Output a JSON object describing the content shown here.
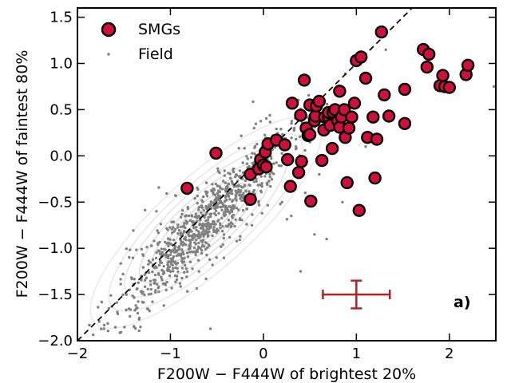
{
  "chart_data": {
    "type": "scatter",
    "xlabel": "F200W − F444W of brightest 20%",
    "ylabel": "F200W − F444W of faintest 80%",
    "xlim": [
      -2.0,
      2.5
    ],
    "ylim": [
      -2.0,
      1.6
    ],
    "x_ticks": [
      -2,
      -1,
      0,
      1,
      2
    ],
    "x_tick_labels": [
      "−2",
      "−1",
      "0",
      "1",
      "2"
    ],
    "y_ticks": [
      -2.0,
      -1.5,
      -1.0,
      -0.5,
      0.0,
      0.5,
      1.0,
      1.5
    ],
    "y_tick_labels": [
      "−2.0",
      "−1.5",
      "−1.0",
      "−0.5",
      "0.0",
      "0.5",
      "1.0",
      "1.5"
    ],
    "grid": false,
    "legend_position": "top-left",
    "panel_label": "a)",
    "one_to_one_line": true,
    "colors": {
      "smg_face": "#d0103a",
      "smg_edge": "#000000",
      "field": "#808080",
      "errorbar": "#b22222",
      "contour": "#c8c8c8"
    },
    "series": [
      {
        "name": "SMGs",
        "x": [
          -0.82,
          -0.51,
          -0.14,
          -0.14,
          -0.05,
          -0.03,
          0.0,
          0.02,
          0.03,
          0.05,
          0.14,
          0.23,
          0.26,
          0.29,
          0.31,
          0.38,
          0.4,
          0.41,
          0.44,
          0.46,
          0.48,
          0.5,
          0.5,
          0.51,
          0.55,
          0.56,
          0.57,
          0.6,
          0.63,
          0.65,
          0.66,
          0.7,
          0.7,
          0.72,
          0.74,
          0.75,
          0.77,
          0.8,
          0.82,
          0.82,
          0.84,
          0.87,
          0.88,
          0.9,
          0.92,
          0.95,
          0.98,
          1.0,
          1.03,
          1.05,
          1.1,
          1.12,
          1.18,
          1.2,
          1.22,
          1.27,
          1.3,
          1.35,
          1.52,
          1.52,
          1.72,
          1.76,
          1.78,
          1.9,
          1.93,
          1.95,
          2.0,
          2.18,
          2.2
        ],
        "y": [
          -0.35,
          0.03,
          -0.47,
          -0.2,
          -0.14,
          -0.04,
          -0.1,
          0.04,
          -0.12,
          0.13,
          0.17,
          0.12,
          -0.04,
          -0.33,
          0.57,
          -0.18,
          0.44,
          -0.06,
          0.82,
          0.3,
          0.22,
          0.23,
          0.55,
          -0.49,
          0.38,
          0.43,
          0.54,
          0.59,
          -0.05,
          0.28,
          0.42,
          0.42,
          0.47,
          0.33,
          0.08,
          0.47,
          0.5,
          0.38,
          0.31,
          0.7,
          0.42,
          0.5,
          0.2,
          -0.29,
          0.3,
          0.42,
          0.57,
          1.03,
          -0.59,
          1.07,
          0.84,
          0.2,
          0.42,
          -0.24,
          0.18,
          1.34,
          0.66,
          0.43,
          0.72,
          0.35,
          1.15,
          0.96,
          1.1,
          0.76,
          0.87,
          0.75,
          0.74,
          0.88,
          0.98
        ]
      },
      {
        "name": "Field"
      }
    ],
    "typical_error": {
      "x": 1.0,
      "y": -1.5,
      "xerr": 0.36,
      "yerr": 0.15
    }
  }
}
